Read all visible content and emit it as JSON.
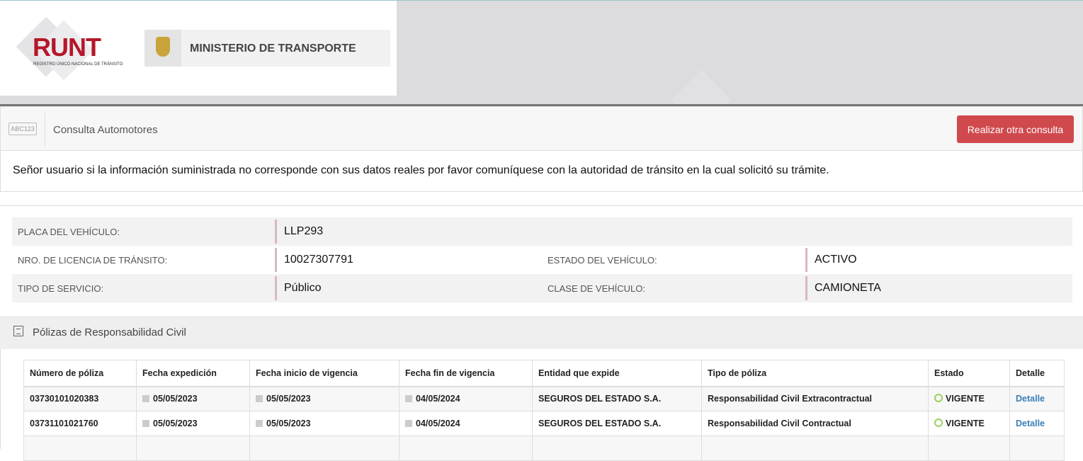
{
  "header": {
    "runt_logo": "RUNT",
    "runt_subtitle": "REGISTRO ÚNICO NACIONAL DE TRÁNSITO",
    "ministry": "MINISTERIO DE TRANSPORTE"
  },
  "panel": {
    "icon_text": "ABC123",
    "title": "Consulta Automotores",
    "new_query_button": "Realizar otra consulta"
  },
  "notice": "Señor usuario si la información suministrada no corresponde con sus datos reales por favor comuníquese con la autoridad de tránsito en la cual solicitó su trámite.",
  "vehicle": {
    "plate_label": "PLACA DEL VEHÍCULO:",
    "plate": "LLP293",
    "license_label": "NRO. DE LICENCIA DE TRÁNSITO:",
    "license": "10027307791",
    "state_label": "ESTADO DEL VEHÍCULO:",
    "state": "ACTIVO",
    "service_label": "TIPO DE SERVICIO:",
    "service": "Público",
    "class_label": "CLASE DE VEHÍCULO:",
    "class": "CAMIONETA"
  },
  "policies": {
    "title": "Pólizas de Responsabilidad Civil",
    "columns": [
      "Número de póliza",
      "Fecha expedición",
      "Fecha inicio de vigencia",
      "Fecha fin de vigencia",
      "Entidad que expide",
      "Tipo de póliza",
      "Estado",
      "Detalle"
    ],
    "rows": [
      {
        "number": "03730101020383",
        "issued": "05/05/2023",
        "start": "05/05/2023",
        "end": "04/05/2024",
        "entity": "SEGUROS DEL ESTADO S.A.",
        "type": "Responsabilidad Civil Extracontractual",
        "status": "VIGENTE",
        "detail": "Detalle"
      },
      {
        "number": "03731101021760",
        "issued": "05/05/2023",
        "start": "05/05/2023",
        "end": "04/05/2024",
        "entity": "SEGUROS DEL ESTADO S.A.",
        "type": "Responsabilidad Civil Contractual",
        "status": "VIGENTE",
        "detail": "Detalle"
      }
    ]
  },
  "colors": {
    "accent_red": "#d0494d",
    "runt_red": "#b5172a",
    "link": "#3a7fb8",
    "status_green": "#9ccf5f"
  }
}
